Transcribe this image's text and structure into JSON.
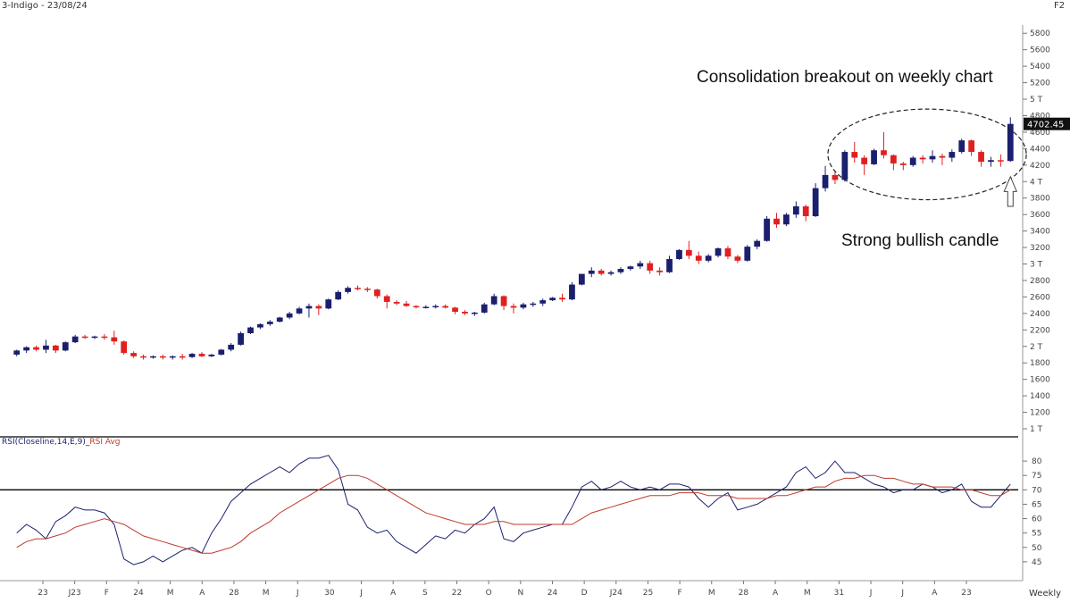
{
  "header": {
    "symbol_date": "3-Indigo - 23/08/24",
    "corner": "F2",
    "rsi_label": "RSI(Closeline,14,E,9)",
    "rsi_avg_label": "RSI Avg",
    "period": "Weekly"
  },
  "annotations": {
    "breakout": "Consolidation breakout on weekly chart",
    "bullish": "Strong bullish candle"
  },
  "colors": {
    "up": "#1a1f6e",
    "down": "#e02020",
    "rsi": "#1a1f6e",
    "rsi_avg": "#c0392b",
    "reference_line": "#000000"
  },
  "chart_data": [
    {
      "type": "candlestick",
      "title": "",
      "ylabel": "",
      "ylim": [
        1000,
        5900
      ],
      "y_ticks": [
        "5800",
        "5600",
        "5400",
        "5200",
        "5 T",
        "4800",
        "4600",
        "4400",
        "4200",
        "4 T",
        "3800",
        "3600",
        "3400",
        "3200",
        "3 T",
        "2800",
        "2600",
        "2400",
        "2200",
        "2 T",
        "1800",
        "1600",
        "1400",
        "1200",
        "1 T"
      ],
      "current_price_label": "4702.45",
      "x_ticks": [
        "23",
        "J23",
        "F",
        "24",
        "M",
        "A",
        "28",
        "M",
        "J",
        "30",
        "J",
        "A",
        "S",
        "22",
        "O",
        "N",
        "24",
        "D",
        "J24",
        "25",
        "F",
        "M",
        "28",
        "A",
        "M",
        "31",
        "J",
        "J",
        "A",
        "23"
      ],
      "candles": [
        [
          1900,
          1960,
          1880,
          1950
        ],
        [
          1950,
          2000,
          1920,
          1990
        ],
        [
          1990,
          2010,
          1940,
          1960
        ],
        [
          1960,
          2080,
          1920,
          2010
        ],
        [
          2010,
          2020,
          1920,
          1950
        ],
        [
          1950,
          2060,
          1940,
          2050
        ],
        [
          2050,
          2140,
          2040,
          2120
        ],
        [
          2120,
          2140,
          2090,
          2110
        ],
        [
          2110,
          2130,
          2090,
          2120
        ],
        [
          2120,
          2150,
          2080,
          2110
        ],
        [
          2110,
          2190,
          2020,
          2060
        ],
        [
          2060,
          2070,
          1900,
          1920
        ],
        [
          1920,
          1940,
          1860,
          1880
        ],
        [
          1880,
          1900,
          1840,
          1870
        ],
        [
          1870,
          1890,
          1850,
          1880
        ],
        [
          1880,
          1900,
          1840,
          1870
        ],
        [
          1870,
          1890,
          1840,
          1880
        ],
        [
          1880,
          1910,
          1840,
          1870
        ],
        [
          1870,
          1920,
          1860,
          1910
        ],
        [
          1910,
          1930,
          1870,
          1880
        ],
        [
          1880,
          1910,
          1870,
          1900
        ],
        [
          1900,
          1970,
          1890,
          1960
        ],
        [
          1960,
          2040,
          1940,
          2020
        ],
        [
          2020,
          2180,
          2010,
          2160
        ],
        [
          2160,
          2240,
          2150,
          2230
        ],
        [
          2230,
          2280,
          2210,
          2270
        ],
        [
          2270,
          2320,
          2250,
          2300
        ],
        [
          2300,
          2360,
          2290,
          2350
        ],
        [
          2350,
          2420,
          2330,
          2400
        ],
        [
          2400,
          2480,
          2390,
          2460
        ],
        [
          2460,
          2520,
          2350,
          2490
        ],
        [
          2490,
          2510,
          2380,
          2460
        ],
        [
          2460,
          2580,
          2450,
          2570
        ],
        [
          2570,
          2680,
          2560,
          2660
        ],
        [
          2660,
          2730,
          2640,
          2710
        ],
        [
          2710,
          2740,
          2680,
          2700
        ],
        [
          2700,
          2720,
          2660,
          2690
        ],
        [
          2690,
          2700,
          2580,
          2610
        ],
        [
          2610,
          2630,
          2460,
          2540
        ],
        [
          2540,
          2560,
          2500,
          2520
        ],
        [
          2520,
          2550,
          2480,
          2490
        ],
        [
          2490,
          2500,
          2460,
          2480
        ],
        [
          2480,
          2500,
          2460,
          2480
        ],
        [
          2480,
          2510,
          2460,
          2490
        ],
        [
          2490,
          2510,
          2460,
          2470
        ],
        [
          2470,
          2480,
          2390,
          2420
        ],
        [
          2420,
          2440,
          2380,
          2400
        ],
        [
          2400,
          2420,
          2370,
          2410
        ],
        [
          2410,
          2530,
          2400,
          2510
        ],
        [
          2510,
          2640,
          2500,
          2610
        ],
        [
          2610,
          2620,
          2440,
          2490
        ],
        [
          2490,
          2520,
          2400,
          2470
        ],
        [
          2470,
          2530,
          2450,
          2510
        ],
        [
          2510,
          2540,
          2480,
          2520
        ],
        [
          2520,
          2580,
          2490,
          2560
        ],
        [
          2560,
          2600,
          2550,
          2590
        ],
        [
          2590,
          2640,
          2540,
          2570
        ],
        [
          2570,
          2780,
          2560,
          2750
        ],
        [
          2750,
          2880,
          2740,
          2880
        ],
        [
          2880,
          2960,
          2840,
          2920
        ],
        [
          2920,
          2940,
          2860,
          2880
        ],
        [
          2880,
          2920,
          2860,
          2900
        ],
        [
          2900,
          2960,
          2880,
          2940
        ],
        [
          2940,
          2980,
          2920,
          2970
        ],
        [
          2970,
          3040,
          2940,
          3010
        ],
        [
          3010,
          3040,
          2880,
          2920
        ],
        [
          2920,
          2960,
          2860,
          2900
        ],
        [
          2900,
          3100,
          2890,
          3060
        ],
        [
          3060,
          3180,
          3050,
          3170
        ],
        [
          3170,
          3280,
          3060,
          3100
        ],
        [
          3100,
          3150,
          3000,
          3040
        ],
        [
          3040,
          3120,
          3020,
          3100
        ],
        [
          3100,
          3200,
          3080,
          3190
        ],
        [
          3190,
          3220,
          3060,
          3090
        ],
        [
          3090,
          3110,
          3010,
          3040
        ],
        [
          3040,
          3230,
          3030,
          3210
        ],
        [
          3210,
          3300,
          3180,
          3280
        ],
        [
          3280,
          3580,
          3270,
          3550
        ],
        [
          3550,
          3620,
          3440,
          3480
        ],
        [
          3480,
          3620,
          3460,
          3600
        ],
        [
          3600,
          3760,
          3560,
          3700
        ],
        [
          3700,
          3720,
          3520,
          3580
        ],
        [
          3580,
          3980,
          3570,
          3920
        ],
        [
          3920,
          4190,
          3880,
          4080
        ],
        [
          4080,
          4120,
          3970,
          4020
        ],
        [
          4020,
          4380,
          4000,
          4360
        ],
        [
          4360,
          4480,
          4230,
          4290
        ],
        [
          4290,
          4320,
          4080,
          4210
        ],
        [
          4210,
          4400,
          4200,
          4380
        ],
        [
          4380,
          4600,
          4280,
          4320
        ],
        [
          4320,
          4330,
          4140,
          4220
        ],
        [
          4220,
          4240,
          4140,
          4200
        ],
        [
          4200,
          4310,
          4180,
          4290
        ],
        [
          4290,
          4320,
          4220,
          4270
        ],
        [
          4270,
          4380,
          4230,
          4310
        ],
        [
          4310,
          4340,
          4200,
          4290
        ],
        [
          4290,
          4390,
          4240,
          4360
        ],
        [
          4360,
          4520,
          4340,
          4500
        ],
        [
          4500,
          4510,
          4310,
          4360
        ],
        [
          4360,
          4380,
          4180,
          4240
        ],
        [
          4240,
          4300,
          4180,
          4260
        ],
        [
          4260,
          4330,
          4180,
          4250
        ],
        [
          4250,
          4780,
          4240,
          4700
        ]
      ]
    },
    {
      "type": "line",
      "title": "",
      "ylim": [
        40,
        85
      ],
      "y_ticks": [
        "80",
        "75",
        "70",
        "65",
        "60",
        "55",
        "50",
        "45"
      ],
      "reference_line": 70,
      "series": [
        {
          "values": [
            55,
            58,
            56,
            53,
            59,
            61,
            64,
            63,
            63,
            62,
            58,
            46,
            44,
            45,
            47,
            45,
            47,
            49,
            50,
            48,
            55,
            60,
            66,
            69,
            72,
            74,
            76,
            78,
            76,
            79,
            81,
            81,
            82,
            77,
            65,
            63,
            57,
            55,
            56,
            52,
            50,
            48,
            51,
            54,
            53,
            56,
            55,
            58,
            60,
            64,
            53,
            52,
            55,
            56,
            57,
            58,
            58,
            64,
            71,
            73,
            70,
            71,
            73,
            71,
            70,
            71,
            70,
            72,
            72,
            71,
            67,
            64,
            67,
            69,
            63,
            64,
            65,
            67,
            69,
            71,
            76,
            78,
            74,
            76,
            80,
            76,
            76,
            74,
            72,
            71,
            69,
            70,
            70,
            72,
            71,
            69,
            70,
            72,
            66,
            64,
            64,
            68,
            72
          ]
        },
        {
          "values": [
            50,
            52,
            53,
            53,
            54,
            55,
            57,
            58,
            59,
            60,
            59,
            58,
            56,
            54,
            53,
            52,
            51,
            50,
            49,
            48,
            48,
            49,
            50,
            52,
            55,
            57,
            59,
            62,
            64,
            66,
            68,
            70,
            72,
            74,
            75,
            75,
            74,
            72,
            70,
            68,
            66,
            64,
            62,
            61,
            60,
            59,
            58,
            58,
            58,
            59,
            59,
            58,
            58,
            58,
            58,
            58,
            58,
            58,
            60,
            62,
            63,
            64,
            65,
            66,
            67,
            68,
            68,
            68,
            69,
            69,
            69,
            68,
            68,
            68,
            67,
            67,
            67,
            67,
            68,
            68,
            69,
            70,
            71,
            71,
            73,
            74,
            74,
            75,
            75,
            74,
            74,
            73,
            72,
            72,
            71,
            71,
            71,
            70,
            70,
            69,
            68,
            68,
            70
          ]
        }
      ]
    }
  ]
}
